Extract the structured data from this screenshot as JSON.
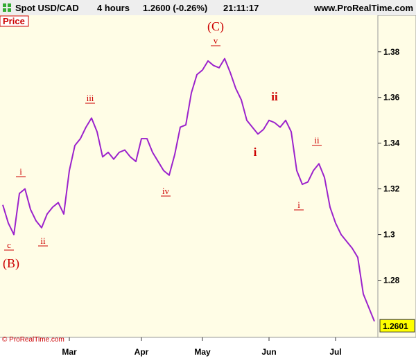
{
  "chart_data": {
    "type": "line",
    "header": {
      "symbol": "Spot USD/CAD",
      "period": "4 hours",
      "quote": "1.2600 (-0.26%)",
      "time": "21:11:17",
      "site": "www.ProRealTime.com"
    },
    "panel_label": "Price",
    "copyright": "© ProRealTime.com",
    "categories": [
      null,
      null,
      null,
      null,
      null,
      null,
      null,
      null,
      null,
      null,
      null,
      null,
      "Mar",
      null,
      null,
      null,
      null,
      null,
      null,
      null,
      null,
      null,
      null,
      null,
      null,
      "Apr",
      null,
      null,
      null,
      null,
      null,
      null,
      null,
      null,
      null,
      null,
      "May",
      null,
      null,
      null,
      null,
      null,
      null,
      null,
      null,
      null,
      null,
      null,
      "Jun",
      null,
      null,
      null,
      null,
      null,
      null,
      null,
      null,
      null,
      null,
      null,
      "Jul",
      null,
      null,
      null,
      null,
      null,
      null,
      null
    ],
    "series": [
      {
        "name": "Spot USD/CAD",
        "color": "#9b22cc",
        "values": [
          1.313,
          1.305,
          1.3,
          1.318,
          1.32,
          1.311,
          1.306,
          1.303,
          1.309,
          1.312,
          1.314,
          1.309,
          1.328,
          1.339,
          1.342,
          1.347,
          1.351,
          1.345,
          1.334,
          1.336,
          1.333,
          1.336,
          1.337,
          1.334,
          1.332,
          1.342,
          1.342,
          1.336,
          1.332,
          1.328,
          1.326,
          1.335,
          1.347,
          1.348,
          1.362,
          1.37,
          1.372,
          1.376,
          1.374,
          1.373,
          1.377,
          1.371,
          1.364,
          1.359,
          1.35,
          1.347,
          1.344,
          1.346,
          1.35,
          1.349,
          1.347,
          1.35,
          1.345,
          1.328,
          1.322,
          1.323,
          1.328,
          1.331,
          1.325,
          1.312,
          1.305,
          1.3,
          1.297,
          1.294,
          1.29,
          1.274,
          1.268,
          1.262
        ]
      }
    ],
    "last_price": 1.2601,
    "ylim": [
      1.255,
      1.396
    ],
    "yticks": [
      1.28,
      1.3,
      1.32,
      1.34,
      1.36,
      1.38
    ],
    "annotations": [
      "(B)",
      "c",
      "i",
      "ii",
      "iii",
      "iv",
      "v",
      "(C)",
      "i",
      "ii",
      "i",
      "ii"
    ]
  }
}
